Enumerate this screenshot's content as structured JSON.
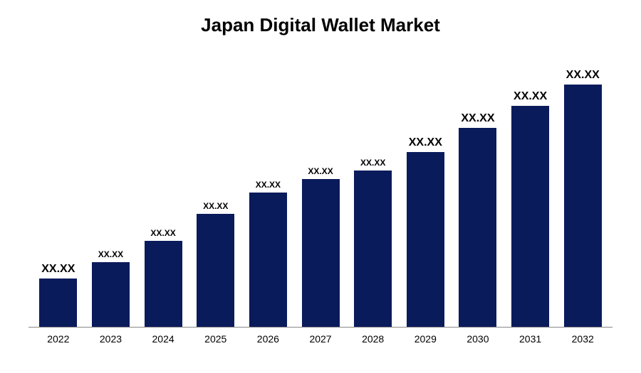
{
  "chart": {
    "type": "bar",
    "title": "Japan Digital Wallet Market",
    "title_fontsize": 26,
    "title_fontweight": "bold",
    "title_color": "#000000",
    "background_color": "#ffffff",
    "bar_color": "#0a1b5c",
    "axis_color": "#888888",
    "categories": [
      "2022",
      "2023",
      "2024",
      "2025",
      "2026",
      "2027",
      "2028",
      "2029",
      "2030",
      "2031",
      "2032"
    ],
    "values": [
      18,
      24,
      32,
      42,
      50,
      55,
      58,
      65,
      74,
      82,
      90
    ],
    "value_labels": [
      "XX.XX",
      "XX.XX",
      "XX.XX",
      "XX.XX",
      "XX.XX",
      "XX.XX",
      "XX.XX",
      "XX.XX",
      "XX.XX",
      "XX.XX",
      "XX.XX"
    ],
    "label_fontsizes": [
      16,
      12,
      12,
      12,
      12,
      12,
      12,
      16,
      16,
      16,
      16
    ],
    "label_fontsize_large": 16,
    "label_fontsize_small": 12,
    "xlabel_fontsize": 14,
    "xlabel_color": "#000000",
    "bar_width_pct": 72,
    "ylim": [
      0,
      100
    ]
  }
}
